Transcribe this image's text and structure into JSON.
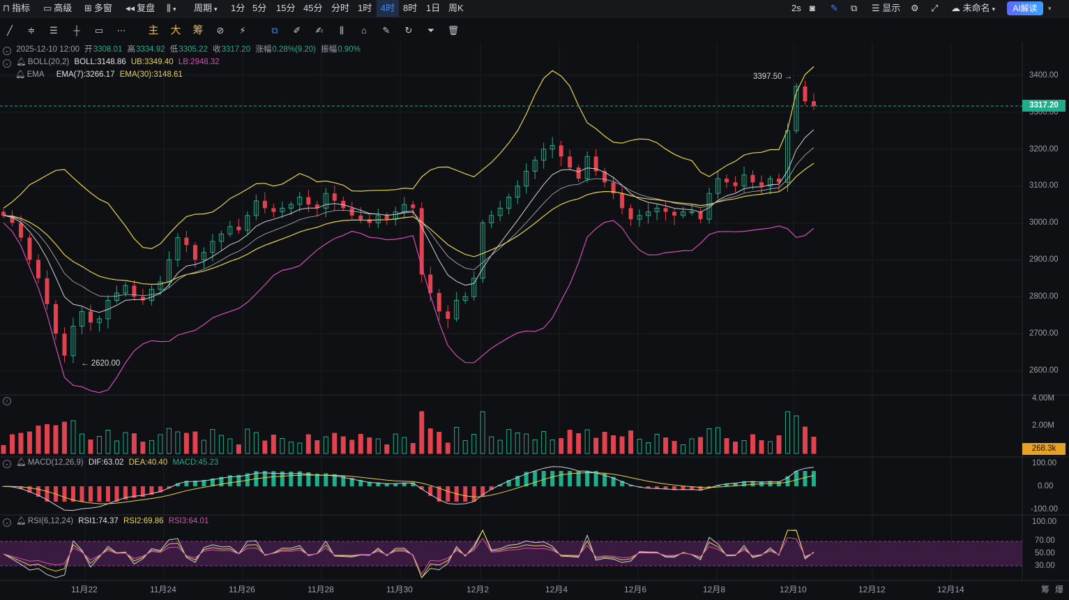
{
  "topbar": {
    "indicators": "指标",
    "advanced": "高级",
    "multi_window": "多窗",
    "replay": "复盘",
    "period_menu": "周期",
    "periods": [
      "1分",
      "5分",
      "15分",
      "45分",
      "分时",
      "1时",
      "4时",
      "8时",
      "1日",
      "周K"
    ],
    "active_period": "4时",
    "refresh": "2s",
    "display": "显示",
    "layout_name": "未命名",
    "ai_button": "AI解读"
  },
  "toolbar": {
    "main": "主",
    "big": "大",
    "chips": "筹"
  },
  "ohlc": {
    "datetime": "2025-12-10 12:00",
    "open_label": "开",
    "open": "3308.01",
    "high_label": "高",
    "high": "3334.92",
    "low_label": "低",
    "low": "3305.22",
    "close_label": "收",
    "close": "3317.20",
    "change_label": "涨幅",
    "change": "0.28%(9.20)",
    "amp_label": "振幅",
    "amp": "0.90%"
  },
  "boll": {
    "name": "BOLL(20,2)",
    "mid": "BOLL:3148.86",
    "ub": "UB:3349.40",
    "lb": "LB:2948.32"
  },
  "ema": {
    "name": "EMA",
    "ema7": "EMA(7):3266.17",
    "ema30": "EMA(30):3148.61"
  },
  "macd": {
    "name": "MACD(12,26,9)",
    "dif": "DIF:63.02",
    "dea": "DEA:40.40",
    "macd": "MACD:45.23"
  },
  "rsi": {
    "name": "RSI(6,12,24)",
    "rsi1": "RSI1:74.37",
    "rsi2": "RSI2:69.86",
    "rsi3": "RSI3:64.01"
  },
  "price_axis": [
    "3400.00",
    "3300.00",
    "3200.00",
    "3100.00",
    "3000.00",
    "2900.00",
    "2800.00",
    "2700.00",
    "2600.00"
  ],
  "current_price": "3317.20",
  "high_marker": "3397.50 →",
  "low_marker": "← 2620.00",
  "volume_axis": [
    "4.00M",
    "2.00M"
  ],
  "current_volume": "268.3k",
  "macd_axis": [
    "100.00",
    "0.00",
    "-100.00"
  ],
  "rsi_axis": [
    "100.00",
    "70.00",
    "50.00",
    "30.00"
  ],
  "dates": [
    "11月22",
    "11月24",
    "11月26",
    "11月28",
    "11月30",
    "12月2",
    "12月4",
    "12月6",
    "12月8",
    "12月10",
    "12月12",
    "12月14"
  ],
  "bottom_right": [
    "筹",
    "爆"
  ],
  "colors": {
    "up": "#1fae8b",
    "down": "#e0424f",
    "ema7": "#cfd3da",
    "ema30": "#e8d44d",
    "boll": "#e8d44d",
    "lb": "#d64fb7",
    "accent": "#3d8bff"
  },
  "chart_data": {
    "type": "candlestick",
    "interval": "4h",
    "y_range": [
      2560,
      3440
    ],
    "close_series": [
      3020,
      3000,
      2960,
      2900,
      2850,
      2780,
      2700,
      2640,
      2720,
      2760,
      2730,
      2740,
      2790,
      2810,
      2830,
      2800,
      2790,
      2820,
      2840,
      2900,
      2960,
      2940,
      2900,
      2920,
      2950,
      2970,
      2990,
      2980,
      3020,
      3060,
      3040,
      3030,
      3040,
      3050,
      3070,
      3050,
      3040,
      3080,
      3060,
      3040,
      3020,
      3010,
      3000,
      3020,
      3010,
      3030,
      3050,
      3040,
      2860,
      2810,
      2760,
      2740,
      2790,
      2800,
      2850,
      3000,
      3020,
      3040,
      3070,
      3100,
      3140,
      3170,
      3200,
      3210,
      3180,
      3150,
      3120,
      3180,
      3140,
      3110,
      3080,
      3040,
      3010,
      3020,
      3030,
      3040,
      3030,
      3020,
      3030,
      3030,
      3010,
      3080,
      3120,
      3110,
      3100,
      3130,
      3110,
      3100,
      3120,
      3110,
      3250,
      3370,
      3330,
      3317
    ]
  }
}
